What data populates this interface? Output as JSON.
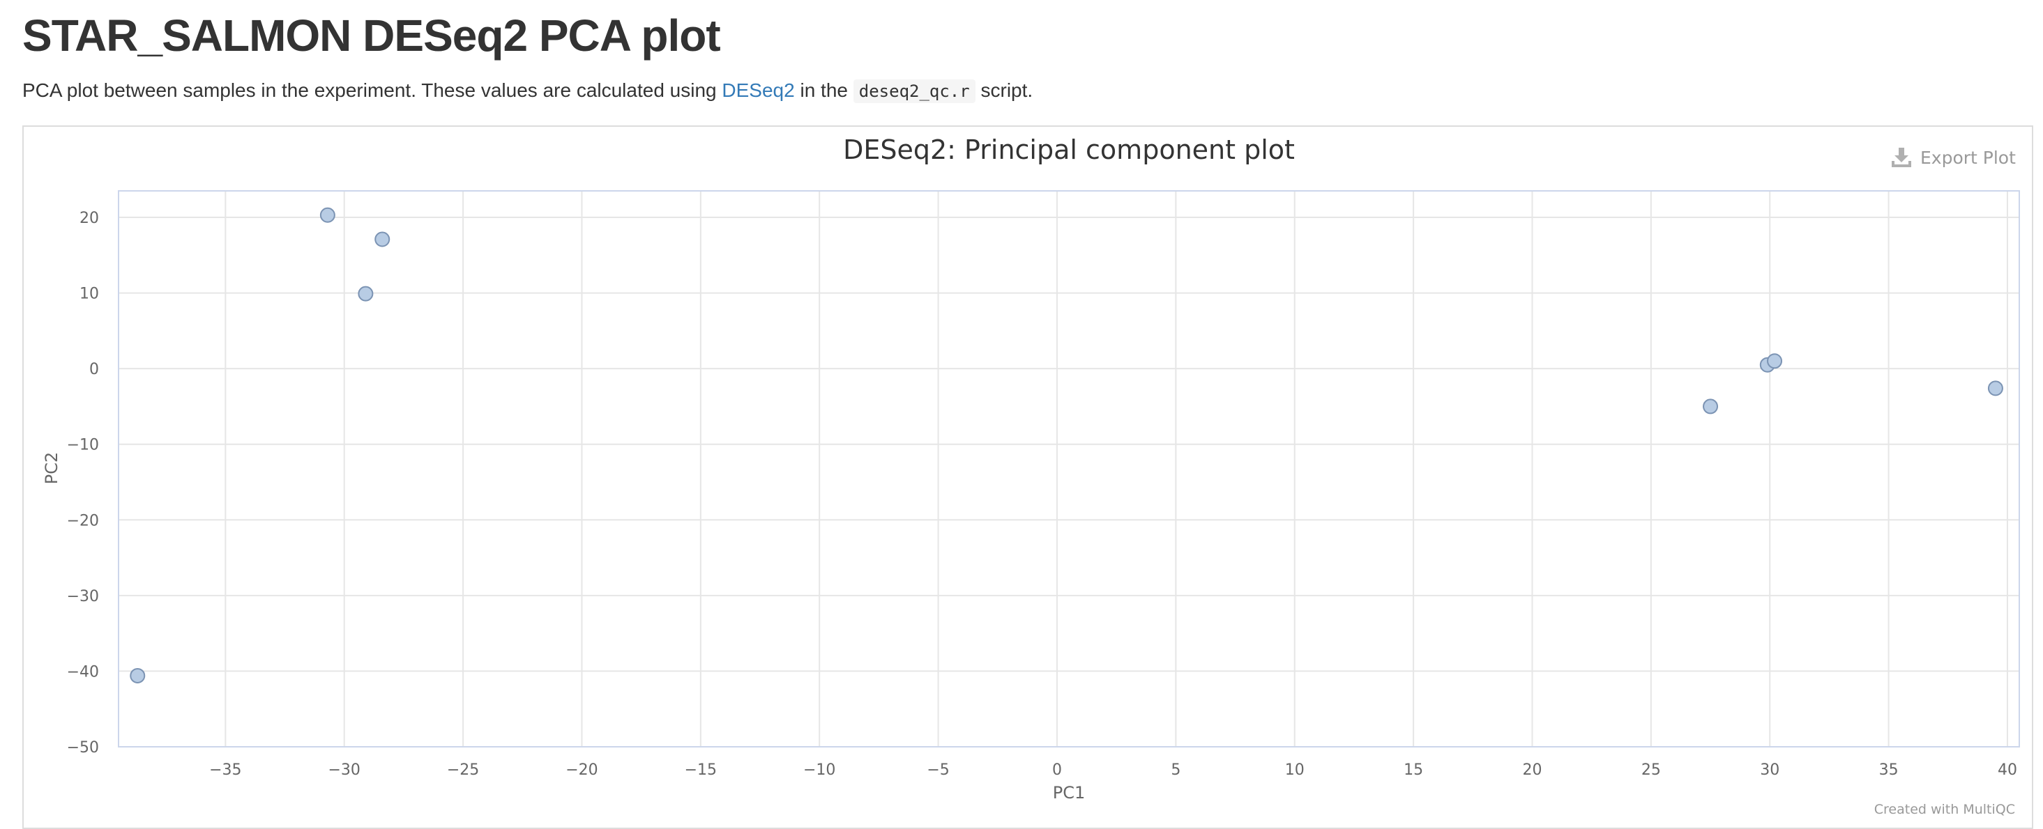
{
  "page": {
    "title": "STAR_SALMON DESeq2 PCA plot",
    "description_pre": "PCA plot between samples in the experiment. These values are calculated using ",
    "description_link": "DESeq2",
    "description_mid": " in the ",
    "description_code": "deseq2_qc.r",
    "description_post": " script."
  },
  "toolbar": {
    "export_label": "Export Plot",
    "export_icon": "download-icon"
  },
  "credits": "Created with MultiQC",
  "colors": {
    "marker_fill": "#b8cce4",
    "marker_stroke": "#7b93b3",
    "grid": "#e6e6e6",
    "axis_line": "#ccd6eb",
    "link": "#337ab7"
  },
  "chart_data": {
    "type": "scatter",
    "title": "DESeq2: Principal component plot",
    "xlabel": "PC1",
    "ylabel": "PC2",
    "xlim": [
      -39.5,
      40.5
    ],
    "ylim": [
      -50,
      23.5
    ],
    "xticks": [
      -35,
      -30,
      -25,
      -20,
      -15,
      -10,
      -5,
      0,
      5,
      10,
      15,
      20,
      25,
      30,
      35,
      40
    ],
    "yticks": [
      20,
      10,
      0,
      -10,
      -20,
      -30,
      -40,
      -50
    ],
    "grid": true,
    "legend": "none",
    "points": [
      {
        "x": -30.7,
        "y": 20.3
      },
      {
        "x": -28.4,
        "y": 17.1
      },
      {
        "x": -29.1,
        "y": 9.9
      },
      {
        "x": -38.7,
        "y": -40.6
      },
      {
        "x": 27.5,
        "y": -5.0
      },
      {
        "x": 29.9,
        "y": 0.5
      },
      {
        "x": 30.2,
        "y": 1.0
      },
      {
        "x": 39.5,
        "y": -2.6
      }
    ]
  }
}
